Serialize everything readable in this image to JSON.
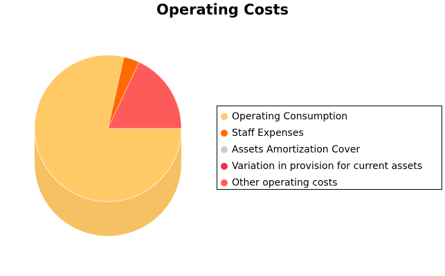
{
  "chart_data": {
    "type": "pie",
    "title": "Operating Costs",
    "legend_position": "right",
    "style": "3d",
    "series": [
      {
        "name": "Operating Consumption",
        "value": 78.5,
        "color": "#FFC966"
      },
      {
        "name": "Staff Expenses",
        "value": 3.5,
        "color": "#FF6A00"
      },
      {
        "name": "Assets Amortization Cover",
        "value": 0.0,
        "color": "#CCCCCC"
      },
      {
        "name": "Variation in provision for current assets",
        "value": 0.0,
        "color": "#E8304A"
      },
      {
        "name": "Other operating costs",
        "value": 18.0,
        "color": "#FF5A5A"
      }
    ]
  }
}
